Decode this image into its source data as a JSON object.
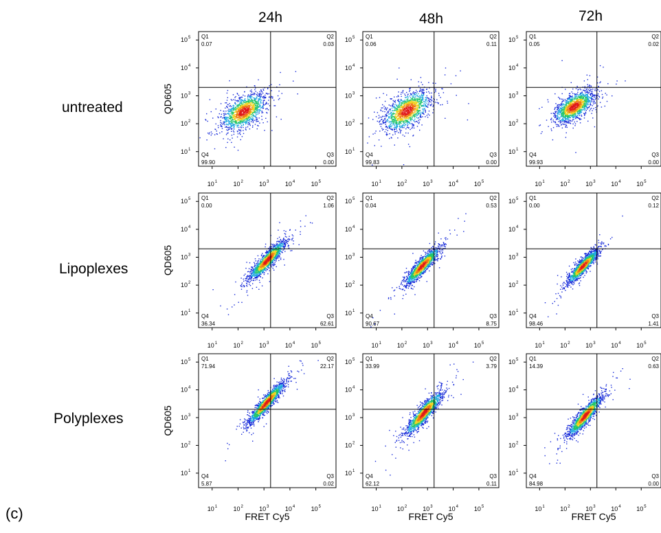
{
  "panel_label": "(c)",
  "columns": [
    "24h",
    "48h",
    "72h"
  ],
  "rows": [
    "untreated",
    "Lipoplexes",
    "Polyplexes"
  ],
  "y_axis_label": "QD605",
  "x_axis_label": "FRET Cy5",
  "palette": [
    "#1428d8",
    "#1aa6e0",
    "#23c66a",
    "#f0d21e",
    "#f07a14",
    "#e01818"
  ],
  "chart_data": [
    {
      "type": "scatter",
      "row": "untreated",
      "column": "24h",
      "xlabel": "",
      "ylabel": "QD605",
      "xscale": "log",
      "yscale": "log",
      "xlim": [
        3,
        600000
      ],
      "ylim": [
        3,
        200000
      ],
      "gate": {
        "x": 1800,
        "y": 2000
      },
      "quadrants": {
        "Q1": "0.07",
        "Q2": "0.03",
        "Q3": "0.00",
        "Q4": "99.90"
      },
      "population": {
        "center": [
          160,
          280
        ],
        "spread": [
          0.42,
          0.32
        ],
        "corr": 0.55
      },
      "xticks": [
        "10^1",
        "10^2",
        "10^3",
        "10^4",
        "10^5"
      ],
      "yticks": [
        "10^1",
        "10^2",
        "10^3",
        "10^4",
        "10^5"
      ]
    },
    {
      "type": "scatter",
      "row": "untreated",
      "column": "48h",
      "xlabel": "",
      "ylabel": "",
      "xscale": "log",
      "yscale": "log",
      "xlim": [
        3,
        600000
      ],
      "ylim": [
        3,
        200000
      ],
      "gate": {
        "x": 1800,
        "y": 2000
      },
      "quadrants": {
        "Q1": "0.06",
        "Q2": "0.11",
        "Q3": "0.00",
        "Q4": "99.83"
      },
      "population": {
        "center": [
          150,
          300
        ],
        "spread": [
          0.45,
          0.35
        ],
        "corr": 0.55
      },
      "xticks": [
        "10^1",
        "10^2",
        "10^3",
        "10^4",
        "10^5"
      ],
      "yticks": [
        "10^1",
        "10^2",
        "10^3",
        "10^4",
        "10^5"
      ]
    },
    {
      "type": "scatter",
      "row": "untreated",
      "column": "72h",
      "xlabel": "",
      "ylabel": "",
      "xscale": "log",
      "yscale": "log",
      "xlim": [
        3,
        600000
      ],
      "ylim": [
        3,
        200000
      ],
      "gate": {
        "x": 1800,
        "y": 2000
      },
      "quadrants": {
        "Q1": "0.05",
        "Q2": "0.02",
        "Q3": "0.00",
        "Q4": "99.93"
      },
      "population": {
        "center": [
          220,
          420
        ],
        "spread": [
          0.38,
          0.28
        ],
        "corr": 0.6
      },
      "xticks": [
        "10^1",
        "10^2",
        "10^3",
        "10^4",
        "10^5"
      ],
      "yticks": [
        "10^1",
        "10^2",
        "10^3",
        "10^4",
        "10^5"
      ]
    },
    {
      "type": "scatter",
      "row": "Lipoplexes",
      "column": "24h",
      "xlabel": "",
      "ylabel": "QD605",
      "xscale": "log",
      "yscale": "log",
      "xlim": [
        3,
        600000
      ],
      "ylim": [
        3,
        200000
      ],
      "gate": {
        "x": 1800,
        "y": 2000
      },
      "quadrants": {
        "Q1": "0.00",
        "Q2": "1.06",
        "Q3": "62.61",
        "Q4": "36.34"
      },
      "population": {
        "center": [
          1300,
          800
        ],
        "spread": [
          0.35,
          0.35
        ],
        "corr": 0.9
      },
      "xticks": [
        "10^1",
        "10^2",
        "10^3",
        "10^4",
        "10^5"
      ],
      "yticks": [
        "10^1",
        "10^2",
        "10^3",
        "10^4",
        "10^5"
      ]
    },
    {
      "type": "scatter",
      "row": "Lipoplexes",
      "column": "48h",
      "xlabel": "",
      "ylabel": "",
      "xscale": "log",
      "yscale": "log",
      "xlim": [
        3,
        600000
      ],
      "ylim": [
        3,
        200000
      ],
      "gate": {
        "x": 1800,
        "y": 2000
      },
      "quadrants": {
        "Q1": "0.04",
        "Q2": "0.53",
        "Q3": "8.75",
        "Q4": "90.67"
      },
      "population": {
        "center": [
          600,
          500
        ],
        "spread": [
          0.33,
          0.33
        ],
        "corr": 0.9
      },
      "xticks": [
        "10^1",
        "10^2",
        "10^3",
        "10^4",
        "10^5"
      ],
      "yticks": [
        "10^1",
        "10^2",
        "10^3",
        "10^4",
        "10^5"
      ]
    },
    {
      "type": "scatter",
      "row": "Lipoplexes",
      "column": "72h",
      "xlabel": "",
      "ylabel": "",
      "xscale": "log",
      "yscale": "log",
      "xlim": [
        3,
        600000
      ],
      "ylim": [
        3,
        200000
      ],
      "gate": {
        "x": 1800,
        "y": 2000
      },
      "quadrants": {
        "Q1": "0.00",
        "Q2": "0.12",
        "Q3": "1.41",
        "Q4": "98.46"
      },
      "population": {
        "center": [
          500,
          500
        ],
        "spread": [
          0.3,
          0.3
        ],
        "corr": 0.9
      },
      "xticks": [
        "10^1",
        "10^2",
        "10^3",
        "10^4",
        "10^5"
      ],
      "yticks": [
        "10^1",
        "10^2",
        "10^3",
        "10^4",
        "10^5"
      ]
    },
    {
      "type": "scatter",
      "row": "Polyplexes",
      "column": "24h",
      "xlabel": "FRET Cy5",
      "ylabel": "QD605",
      "xscale": "log",
      "yscale": "log",
      "xlim": [
        3,
        600000
      ],
      "ylim": [
        3,
        200000
      ],
      "gate": {
        "x": 1800,
        "y": 2000
      },
      "quadrants": {
        "Q1": "71.94",
        "Q2": "22.17",
        "Q3": "0.02",
        "Q4": "5.87"
      },
      "population": {
        "center": [
          1200,
          3500
        ],
        "spread": [
          0.35,
          0.38
        ],
        "corr": 0.93
      },
      "xticks": [
        "10^1",
        "10^2",
        "10^3",
        "10^4",
        "10^5"
      ],
      "yticks": [
        "10^1",
        "10^2",
        "10^3",
        "10^4",
        "10^5"
      ]
    },
    {
      "type": "scatter",
      "row": "Polyplexes",
      "column": "48h",
      "xlabel": "FRET Cy5",
      "ylabel": "",
      "xscale": "log",
      "yscale": "log",
      "xlim": [
        3,
        600000
      ],
      "ylim": [
        3,
        200000
      ],
      "gate": {
        "x": 1800,
        "y": 2000
      },
      "quadrants": {
        "Q1": "33.99",
        "Q2": "3.79",
        "Q3": "0.11",
        "Q4": "62.12"
      },
      "population": {
        "center": [
          700,
          1500
        ],
        "spread": [
          0.35,
          0.38
        ],
        "corr": 0.9
      },
      "xticks": [
        "10^1",
        "10^2",
        "10^3",
        "10^4",
        "10^5"
      ],
      "yticks": [
        "10^1",
        "10^2",
        "10^3",
        "10^4",
        "10^5"
      ]
    },
    {
      "type": "scatter",
      "row": "Polyplexes",
      "column": "72h",
      "xlabel": "FRET Cy5",
      "ylabel": "",
      "xscale": "log",
      "yscale": "log",
      "xlim": [
        3,
        600000
      ],
      "ylim": [
        3,
        200000
      ],
      "gate": {
        "x": 1800,
        "y": 2000
      },
      "quadrants": {
        "Q1": "14.39",
        "Q2": "0.63",
        "Q3": "0.00",
        "Q4": "84.98"
      },
      "population": {
        "center": [
          600,
          1200
        ],
        "spread": [
          0.33,
          0.36
        ],
        "corr": 0.9
      },
      "xticks": [
        "10^1",
        "10^2",
        "10^3",
        "10^4",
        "10^5"
      ],
      "yticks": [
        "10^1",
        "10^2",
        "10^3",
        "10^4",
        "10^5"
      ]
    }
  ]
}
